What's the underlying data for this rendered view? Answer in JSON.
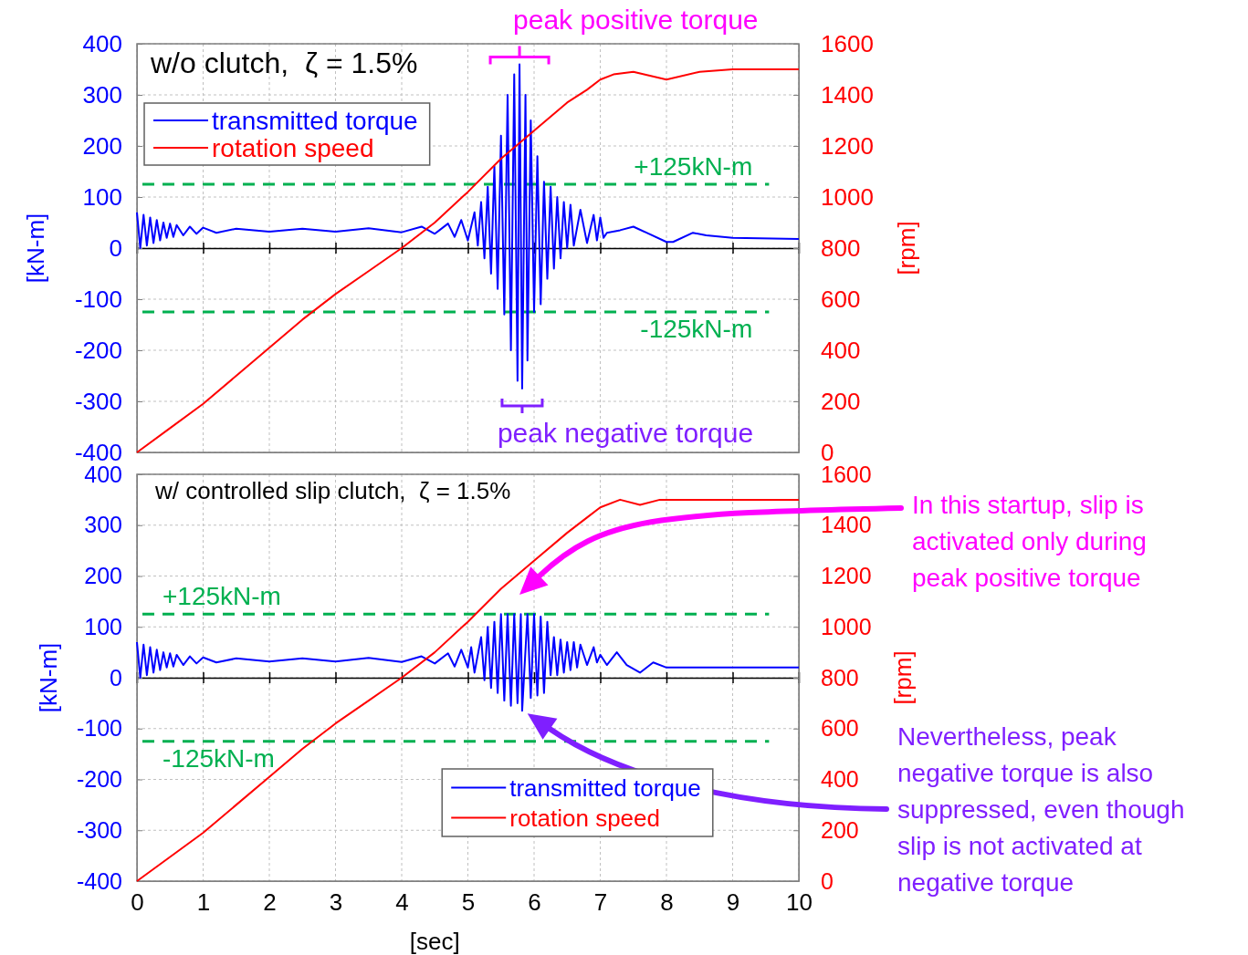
{
  "chart_data": [
    {
      "type": "line",
      "title": "w/o clutch,  ζ = 1.5%",
      "ylabel": "[kN-m]",
      "y2label": "[rpm]",
      "xlim": [
        0,
        10
      ],
      "xticks": [
        0,
        1,
        2,
        3,
        4,
        5,
        6,
        7,
        8,
        9,
        10
      ],
      "ylim": [
        -400,
        400
      ],
      "yticks": [
        -400,
        -300,
        -200,
        -100,
        0,
        100,
        200,
        300,
        400
      ],
      "y2lim": [
        0,
        1600
      ],
      "y2ticks": [
        0,
        200,
        400,
        600,
        800,
        1000,
        1200,
        1400,
        1600
      ],
      "grid": true,
      "legend": "top left",
      "tick_labels": "y",
      "series": [
        {
          "name": "transmitted torque",
          "color": "#0000ff",
          "x": [
            0,
            0.05,
            0.1,
            0.15,
            0.2,
            0.25,
            0.3,
            0.35,
            0.4,
            0.45,
            0.5,
            0.55,
            0.6,
            0.7,
            0.8,
            0.9,
            1.0,
            1.2,
            1.5,
            2,
            2.5,
            3,
            3.5,
            4,
            4.3,
            4.5,
            4.7,
            4.8,
            4.9,
            5.0,
            5.1,
            5.15,
            5.2,
            5.25,
            5.3,
            5.35,
            5.4,
            5.45,
            5.5,
            5.55,
            5.6,
            5.65,
            5.7,
            5.75,
            5.78,
            5.82,
            5.87,
            5.9,
            5.95,
            6.0,
            6.05,
            6.1,
            6.15,
            6.2,
            6.25,
            6.3,
            6.35,
            6.4,
            6.45,
            6.5,
            6.55,
            6.6,
            6.7,
            6.8,
            6.9,
            6.95,
            7.0,
            7.05,
            7.1,
            7.3,
            7.5,
            7.7,
            8.0,
            8.1,
            8.4,
            8.6,
            9,
            10
          ],
          "values": [
            70,
            0,
            65,
            5,
            60,
            10,
            55,
            15,
            50,
            20,
            48,
            22,
            45,
            25,
            42,
            28,
            40,
            30,
            38,
            32,
            38,
            32,
            39,
            31,
            42,
            28,
            48,
            22,
            55,
            15,
            70,
            5,
            90,
            -20,
            120,
            -50,
            160,
            -80,
            220,
            -130,
            300,
            -200,
            340,
            -260,
            360,
            -275,
            300,
            -220,
            250,
            -125,
            180,
            -110,
            130,
            -60,
            120,
            -40,
            100,
            -20,
            90,
            0,
            85,
            5,
            75,
            10,
            65,
            15,
            60,
            20,
            30,
            35,
            42,
            30,
            12,
            12,
            30,
            25,
            20,
            18
          ]
        },
        {
          "name": "rotation speed",
          "color": "#ff0000",
          "axis": "y2",
          "x": [
            0,
            0.5,
            1,
            1.5,
            2,
            2.5,
            3,
            3.5,
            4,
            4.5,
            5,
            5.5,
            6,
            6.5,
            6.8,
            7.0,
            7.2,
            7.5,
            8.0,
            8.5,
            9,
            10
          ],
          "values": [
            0,
            95,
            190,
            300,
            410,
            520,
            620,
            710,
            800,
            900,
            1020,
            1150,
            1260,
            1370,
            1420,
            1460,
            1480,
            1490,
            1460,
            1490,
            1500,
            1500
          ]
        }
      ],
      "ref_lines": [
        {
          "axis": "y",
          "value": 125,
          "label": "+125kN-m",
          "color": "#00b050",
          "line_style": "dashed"
        },
        {
          "axis": "y",
          "value": -125,
          "label": "-125kN-m",
          "color": "#00b050",
          "line_style": "dashed"
        }
      ],
      "annotations": [
        {
          "text": "peak positive torque",
          "x": 5.78,
          "y": 360
        },
        {
          "text": "peak negative torque",
          "x": 5.82,
          "y": -275
        }
      ]
    },
    {
      "type": "line",
      "title": "w/ controlled slip clutch,  ζ = 1.5%",
      "xlabel": "[sec]",
      "ylabel": "[kN-m]",
      "y2label": "[rpm]",
      "xlim": [
        0,
        10
      ],
      "xticks": [
        0,
        1,
        2,
        3,
        4,
        5,
        6,
        7,
        8,
        9,
        10
      ],
      "ylim": [
        -400,
        400
      ],
      "yticks": [
        -400,
        -300,
        -200,
        -100,
        0,
        100,
        200,
        300,
        400
      ],
      "y2lim": [
        0,
        1600
      ],
      "y2ticks": [
        0,
        200,
        400,
        600,
        800,
        1000,
        1200,
        1400,
        1600
      ],
      "grid": true,
      "legend": "bottom",
      "series": [
        {
          "name": "transmitted torque",
          "color": "#0000ff",
          "x": [
            0,
            0.05,
            0.1,
            0.15,
            0.2,
            0.25,
            0.3,
            0.35,
            0.4,
            0.45,
            0.5,
            0.55,
            0.6,
            0.7,
            0.8,
            0.9,
            1.0,
            1.2,
            1.5,
            2,
            2.5,
            3,
            3.5,
            4,
            4.3,
            4.5,
            4.7,
            4.8,
            4.9,
            5.0,
            5.05,
            5.1,
            5.2,
            5.25,
            5.3,
            5.35,
            5.4,
            5.45,
            5.5,
            5.55,
            5.6,
            5.65,
            5.7,
            5.75,
            5.8,
            5.82,
            5.9,
            5.95,
            6.0,
            6.05,
            6.1,
            6.15,
            6.2,
            6.25,
            6.3,
            6.35,
            6.4,
            6.45,
            6.5,
            6.55,
            6.6,
            6.65,
            6.7,
            6.8,
            6.9,
            6.95,
            7.0,
            7.1,
            7.25,
            7.4,
            7.6,
            7.8,
            8.0,
            8.5,
            10
          ],
          "values": [
            70,
            0,
            65,
            5,
            60,
            10,
            55,
            15,
            50,
            20,
            48,
            22,
            45,
            25,
            42,
            28,
            40,
            30,
            38,
            32,
            38,
            32,
            39,
            31,
            42,
            28,
            48,
            22,
            55,
            20,
            60,
            10,
            80,
            -5,
            100,
            -20,
            110,
            -30,
            125,
            -45,
            125,
            -55,
            125,
            -50,
            125,
            -65,
            125,
            -40,
            125,
            -35,
            120,
            -30,
            110,
            5,
            80,
            5,
            75,
            10,
            70,
            15,
            70,
            20,
            65,
            25,
            60,
            30,
            45,
            25,
            50,
            25,
            10,
            30,
            20,
            20,
            20
          ]
        },
        {
          "name": "rotation speed",
          "color": "#ff0000",
          "axis": "y2",
          "x": [
            0,
            0.5,
            1,
            1.5,
            2,
            2.5,
            3,
            3.5,
            4,
            4.5,
            5,
            5.5,
            6,
            6.5,
            6.8,
            7.0,
            7.3,
            7.6,
            7.9,
            8.5,
            10
          ],
          "values": [
            0,
            95,
            190,
            300,
            410,
            520,
            620,
            710,
            800,
            900,
            1020,
            1150,
            1260,
            1370,
            1430,
            1470,
            1500,
            1480,
            1500,
            1500,
            1500
          ]
        }
      ],
      "ref_lines": [
        {
          "axis": "y",
          "value": 125,
          "label": "+125kN-m",
          "color": "#00b050",
          "line_style": "dashed"
        },
        {
          "axis": "y",
          "value": -125,
          "label": "-125kN-m",
          "color": "#00b050",
          "line_style": "dashed"
        }
      ],
      "annotations": [
        "In this startup, slip is activated only during peak positive torque",
        "Nevertheless, peak negative torque is also suppressed, even though slip is not activated at negative torque"
      ]
    }
  ]
}
